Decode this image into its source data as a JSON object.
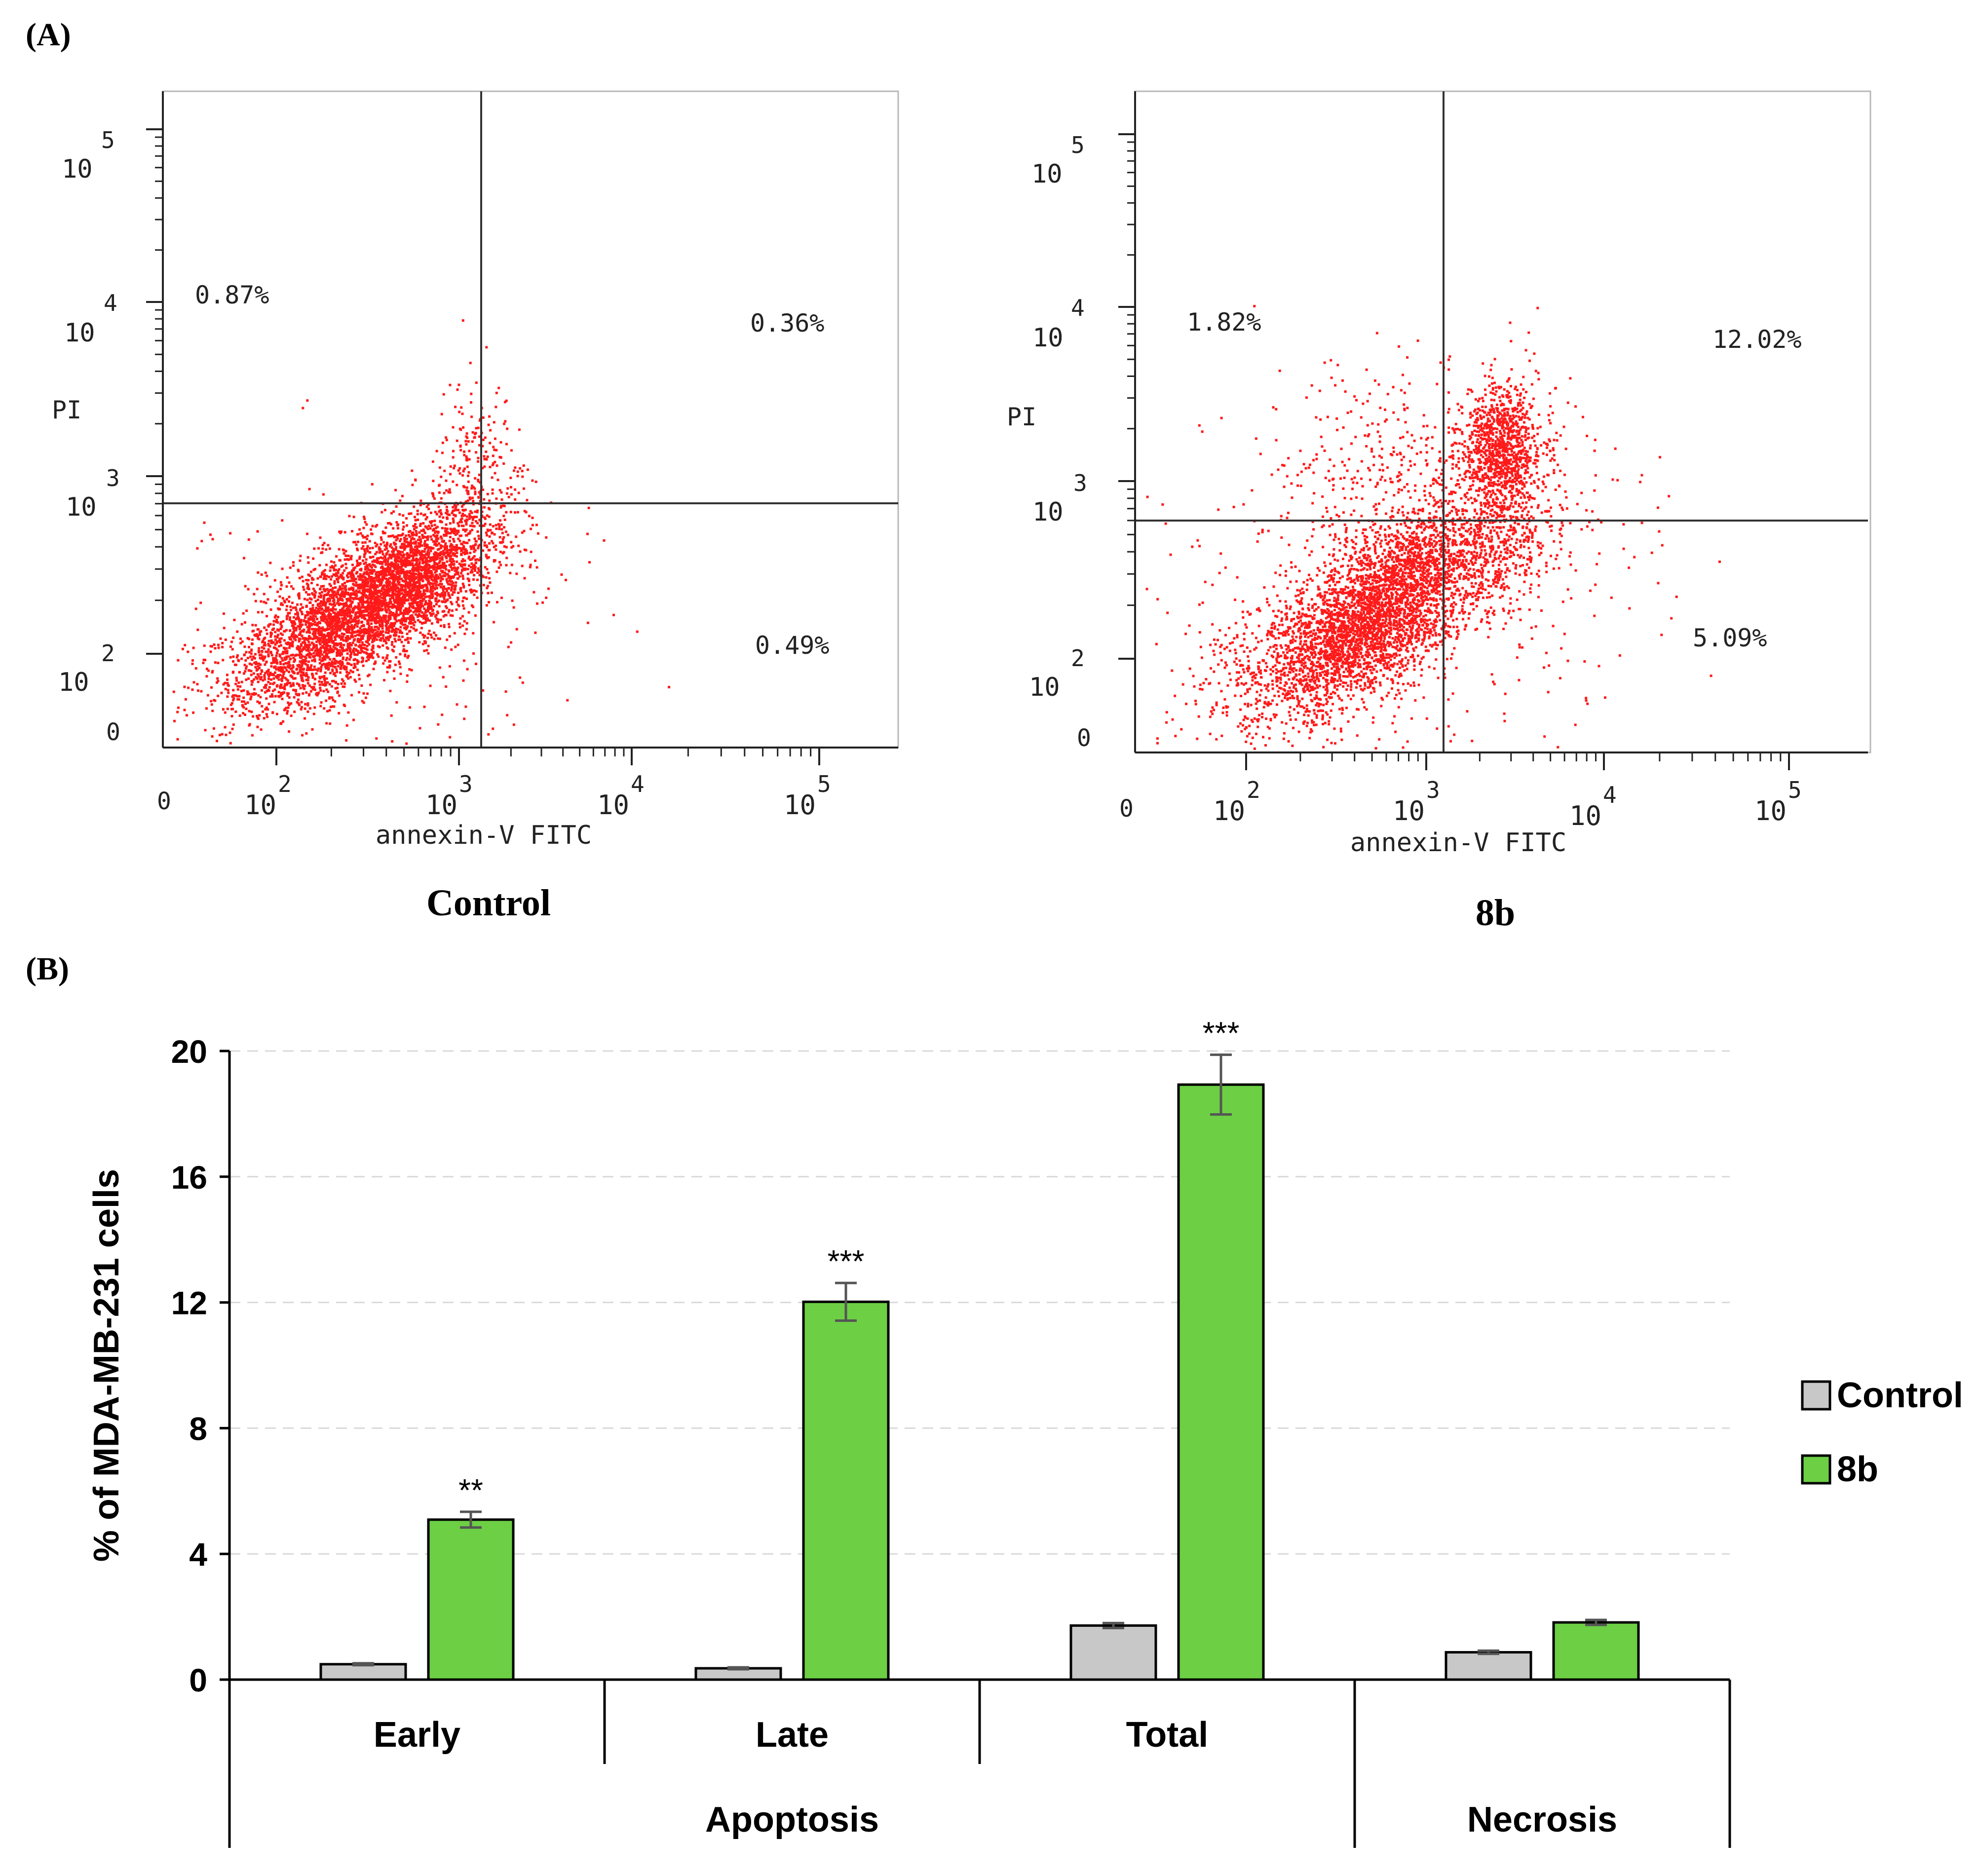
{
  "panel_a": {
    "label": "(A)",
    "plots": [
      {
        "caption": "Control",
        "x_axis_label": "annexin-V FITC",
        "y_axis_label": "PI",
        "x_ticks": [
          {
            "base": "0",
            "exp": ""
          },
          {
            "base": "10",
            "exp": "2"
          },
          {
            "base": "10",
            "exp": "3"
          },
          {
            "base": "10",
            "exp": "4"
          },
          {
            "base": "10",
            "exp": "5"
          }
        ],
        "y_ticks": [
          {
            "base": "0",
            "exp": ""
          },
          {
            "base": "10",
            "exp": "2"
          },
          {
            "base": "10",
            "exp": "3"
          },
          {
            "base": "10",
            "exp": "4"
          },
          {
            "base": "10",
            "exp": "5"
          }
        ],
        "quadrants": {
          "upper_left": "0.87%",
          "upper_right": "0.36%",
          "lower_right": "0.49%"
        },
        "dot_color": "#ff1a1a"
      },
      {
        "caption": "8b",
        "x_axis_label": "annexin-V FITC",
        "y_axis_label": "PI",
        "x_ticks": [
          {
            "base": "0",
            "exp": ""
          },
          {
            "base": "10",
            "exp": "2"
          },
          {
            "base": "10",
            "exp": "3"
          },
          {
            "base": "10",
            "exp": "4"
          },
          {
            "base": "10",
            "exp": "5"
          }
        ],
        "y_ticks": [
          {
            "base": "0",
            "exp": ""
          },
          {
            "base": "10",
            "exp": "2"
          },
          {
            "base": "10",
            "exp": "3"
          },
          {
            "base": "10",
            "exp": "4"
          },
          {
            "base": "10",
            "exp": "5"
          }
        ],
        "quadrants": {
          "upper_left": "1.82%",
          "upper_right": "12.02%",
          "lower_right": "5.09%"
        },
        "dot_color": "#ff1a1a"
      }
    ]
  },
  "panel_b": {
    "label": "(B)"
  },
  "chart_data": {
    "type": "bar",
    "ylabel": "% of MDA-MB-231 cells",
    "xlabel": "",
    "ylim": [
      0,
      20
    ],
    "yticks": [
      0,
      4,
      8,
      12,
      16,
      20
    ],
    "grid": true,
    "legend_position": "right",
    "categories": [
      "Early",
      "Late",
      "Total",
      "Necrosis"
    ],
    "category_groups": [
      {
        "label": "Apoptosis",
        "members": [
          "Early",
          "Late",
          "Total"
        ]
      },
      {
        "label": "Necrosis",
        "members": [
          "Necrosis"
        ]
      }
    ],
    "category_labels": [
      "Early",
      "Late",
      "Total",
      ""
    ],
    "series": [
      {
        "name": "Control",
        "color": "#c8c8c8",
        "values": [
          0.49,
          0.36,
          1.72,
          0.87
        ],
        "errors": [
          0.03,
          0.03,
          0.08,
          0.05
        ],
        "annotations": [
          "",
          "",
          "",
          ""
        ]
      },
      {
        "name": "8b",
        "color": "#6ccf44",
        "values": [
          5.09,
          12.02,
          18.93,
          1.82
        ],
        "errors": [
          0.25,
          0.6,
          0.95,
          0.08
        ],
        "annotations": [
          "**",
          "***",
          "***",
          ""
        ]
      }
    ]
  }
}
